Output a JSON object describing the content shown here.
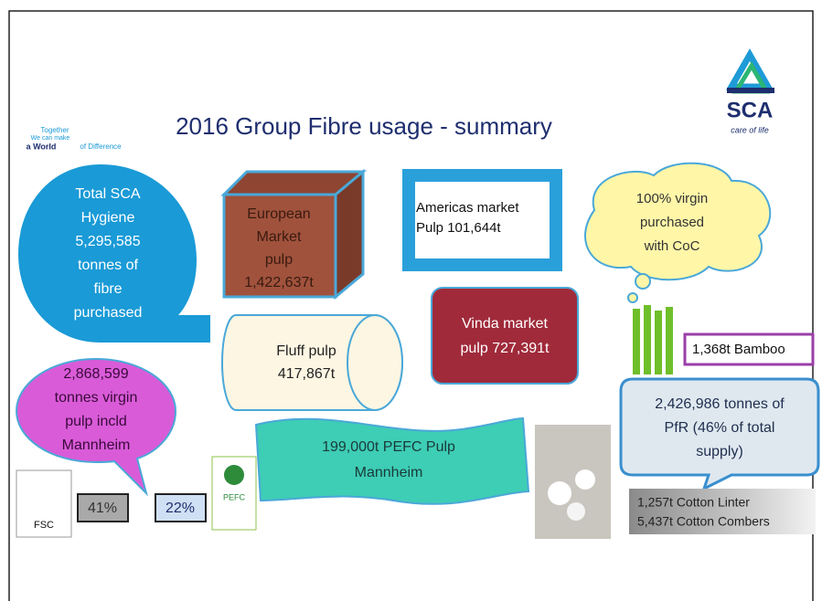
{
  "header": {
    "title": "2016 Group Fibre usage - summary",
    "logo": "SCA",
    "logo_tagline": "care of life",
    "badge": [
      "Together",
      "We can make",
      "a World",
      "of Difference"
    ]
  },
  "boxes": {
    "total": [
      "Total SCA",
      "Hygiene",
      "5,295,585",
      "tonnes of",
      "fibre",
      "purchased"
    ],
    "european": [
      "European",
      "Market",
      "pulp",
      "1,422,637t"
    ],
    "americas": [
      "Americas market",
      "Pulp 101,644t"
    ],
    "coc": [
      "100% virgin",
      "purchased",
      "with CoC"
    ],
    "fluff": [
      "Fluff pulp",
      "417,867t"
    ],
    "vinda": [
      "Vinda market",
      "pulp 727,391t"
    ],
    "bamboo": [
      "1,368t Bamboo"
    ],
    "virgin": [
      "2,868,599",
      "tonnes virgin",
      "pulp incld",
      "Mannheim"
    ],
    "pefc_pulp": [
      "199,000t PEFC Pulp",
      "Mannheim"
    ],
    "pfr": [
      "2,426,986 tonnes of",
      "PfR (46% of total",
      "supply)"
    ],
    "cotton": [
      "1,257t Cotton Linter",
      "5,437t Cotton Combers"
    ],
    "fsc_share": [
      "41%"
    ],
    "pefc_share": [
      "22%"
    ],
    "fsc_logo": [
      "FSC"
    ],
    "pefc_logo": [
      "PEFC"
    ]
  }
}
